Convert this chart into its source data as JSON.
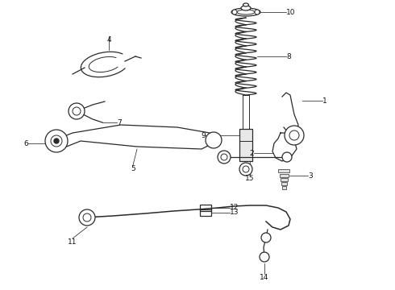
{
  "bg_color": "#ffffff",
  "line_color": "#2a2a2a",
  "label_color": "#111111",
  "figsize": [
    4.9,
    3.6
  ],
  "dpi": 100,
  "layout": {
    "xlim": [
      0,
      490
    ],
    "ylim": [
      0,
      360
    ]
  }
}
